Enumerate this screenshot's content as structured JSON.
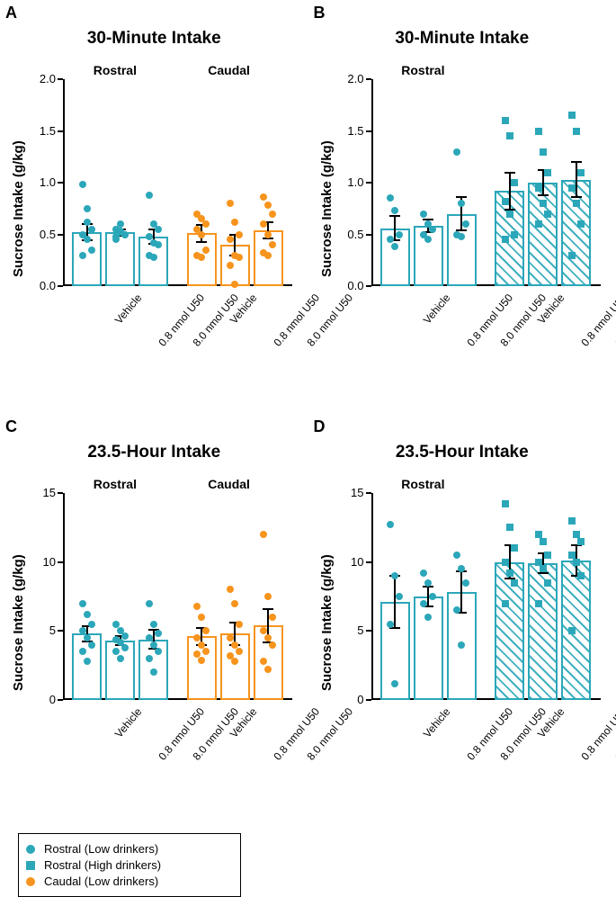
{
  "colors": {
    "teal": "#2ba7b9",
    "orange": "#f7941d",
    "black": "#000000",
    "bg": "#ffffff"
  },
  "legend": [
    {
      "shape": "circle",
      "color": "#2ba7b9",
      "label": "Rostral (Low drinkers)"
    },
    {
      "shape": "square",
      "color": "#2ba7b9",
      "label": "Rostral (High drinkers)"
    },
    {
      "shape": "circle",
      "color": "#f7941d",
      "label": "Caudal (Low drinkers)"
    }
  ],
  "ylab": "Sucrose Intake  (g/kg)",
  "xcats": [
    "Vehicle",
    "0.8 nmol U50",
    "8.0 nmol U50"
  ],
  "panelA": {
    "letter": "A",
    "title": "30-Minute Intake",
    "subs": [
      "Rostral",
      "Caudal"
    ],
    "ylim": [
      0,
      2.0
    ],
    "ystep": 0.5,
    "groups": [
      {
        "color": "#2ba7b9",
        "bars": [
          {
            "mean": 0.52,
            "err": 0.08,
            "pts": [
              0.98,
              0.75,
              0.55,
              0.5,
              0.45,
              0.35,
              0.3,
              0.62
            ]
          },
          {
            "mean": 0.52,
            "err": 0.03,
            "pts": [
              0.55,
              0.6,
              0.5,
              0.48,
              0.53,
              0.5,
              0.45,
              0.52
            ]
          },
          {
            "mean": 0.48,
            "err": 0.07,
            "pts": [
              0.88,
              0.6,
              0.55,
              0.48,
              0.42,
              0.4,
              0.3,
              0.28
            ]
          }
        ]
      },
      {
        "color": "#f7941d",
        "bars": [
          {
            "mean": 0.51,
            "err": 0.08,
            "pts": [
              0.7,
              0.65,
              0.6,
              0.55,
              0.5,
              0.35,
              0.3,
              0.28
            ]
          },
          {
            "mean": 0.4,
            "err": 0.1,
            "pts": [
              0.8,
              0.62,
              0.5,
              0.45,
              0.3,
              0.28,
              0.2,
              0.02
            ]
          },
          {
            "mean": 0.54,
            "err": 0.08,
            "pts": [
              0.86,
              0.78,
              0.7,
              0.6,
              0.5,
              0.4,
              0.32,
              0.3
            ]
          }
        ]
      }
    ]
  },
  "panelB": {
    "letter": "B",
    "title": "30-Minute Intake",
    "subs": [
      "Rostral"
    ],
    "ylim": [
      0,
      2.0
    ],
    "ystep": 0.5,
    "groups": [
      {
        "color": "#2ba7b9",
        "hatch": false,
        "shape": "circle",
        "bars": [
          {
            "mean": 0.56,
            "err": 0.12,
            "pts": [
              0.85,
              0.73,
              0.5,
              0.45,
              0.38
            ]
          },
          {
            "mean": 0.58,
            "err": 0.06,
            "pts": [
              0.7,
              0.6,
              0.55,
              0.5,
              0.45
            ]
          },
          {
            "mean": 0.7,
            "err": 0.16,
            "pts": [
              1.3,
              0.8,
              0.6,
              0.5,
              0.48
            ]
          }
        ]
      },
      {
        "color": "#2ba7b9",
        "hatch": true,
        "shape": "square",
        "bars": [
          {
            "mean": 0.92,
            "err": 0.18,
            "pts": [
              1.6,
              1.45,
              1.0,
              0.82,
              0.7,
              0.5,
              0.45
            ]
          },
          {
            "mean": 1.0,
            "err": 0.12,
            "pts": [
              1.5,
              1.3,
              1.1,
              0.95,
              0.8,
              0.7,
              0.6
            ]
          },
          {
            "mean": 1.03,
            "err": 0.17,
            "pts": [
              1.65,
              1.5,
              1.1,
              0.95,
              0.8,
              0.6,
              0.3
            ]
          }
        ]
      }
    ]
  },
  "panelC": {
    "letter": "C",
    "title": "23.5-Hour Intake",
    "subs": [
      "Rostral",
      "Caudal"
    ],
    "ylim": [
      0,
      15
    ],
    "ystep": 5,
    "groups": [
      {
        "color": "#2ba7b9",
        "bars": [
          {
            "mean": 4.8,
            "err": 0.55,
            "pts": [
              7.0,
              6.2,
              5.5,
              5.0,
              4.5,
              4.0,
              3.5,
              2.8
            ]
          },
          {
            "mean": 4.3,
            "err": 0.35,
            "pts": [
              5.5,
              5.0,
              4.6,
              4.4,
              4.2,
              3.8,
              3.5,
              3.0
            ]
          },
          {
            "mean": 4.4,
            "err": 0.7,
            "pts": [
              7.0,
              5.5,
              4.8,
              4.5,
              4.0,
              3.5,
              3.0,
              2.0
            ]
          }
        ]
      },
      {
        "color": "#f7941d",
        "bars": [
          {
            "mean": 4.6,
            "err": 0.6,
            "pts": [
              6.8,
              6.0,
              5.0,
              4.5,
              4.0,
              3.5,
              3.3,
              2.9
            ]
          },
          {
            "mean": 4.8,
            "err": 0.8,
            "pts": [
              8.0,
              7.0,
              5.5,
              4.5,
              4.0,
              3.5,
              3.2,
              2.8
            ]
          },
          {
            "mean": 5.4,
            "err": 1.2,
            "pts": [
              12.0,
              7.5,
              6.0,
              5.0,
              4.5,
              4.0,
              2.8,
              2.2
            ]
          }
        ]
      }
    ]
  },
  "panelD": {
    "letter": "D",
    "title": "23.5-Hour Intake",
    "subs": [
      "Rostral"
    ],
    "ylim": [
      0,
      15
    ],
    "ystep": 5,
    "groups": [
      {
        "color": "#2ba7b9",
        "hatch": false,
        "shape": "circle",
        "bars": [
          {
            "mean": 7.1,
            "err": 1.9,
            "pts": [
              12.7,
              9.0,
              7.5,
              5.5,
              1.2
            ]
          },
          {
            "mean": 7.5,
            "err": 0.7,
            "pts": [
              9.2,
              8.5,
              7.5,
              7.0,
              6.0
            ]
          },
          {
            "mean": 7.8,
            "err": 1.5,
            "pts": [
              10.5,
              9.5,
              8.5,
              6.5,
              4.0
            ]
          }
        ]
      },
      {
        "color": "#2ba7b9",
        "hatch": true,
        "shape": "square",
        "bars": [
          {
            "mean": 10.0,
            "err": 1.2,
            "pts": [
              14.2,
              12.5,
              11.0,
              10.0,
              9.2,
              8.5,
              7.0
            ]
          },
          {
            "mean": 9.9,
            "err": 0.7,
            "pts": [
              12.0,
              11.5,
              10.5,
              10.0,
              9.5,
              8.5,
              7.0
            ]
          },
          {
            "mean": 10.1,
            "err": 1.1,
            "pts": [
              13.0,
              12.0,
              11.5,
              10.5,
              10.0,
              9.0,
              5.0
            ]
          }
        ]
      }
    ]
  }
}
